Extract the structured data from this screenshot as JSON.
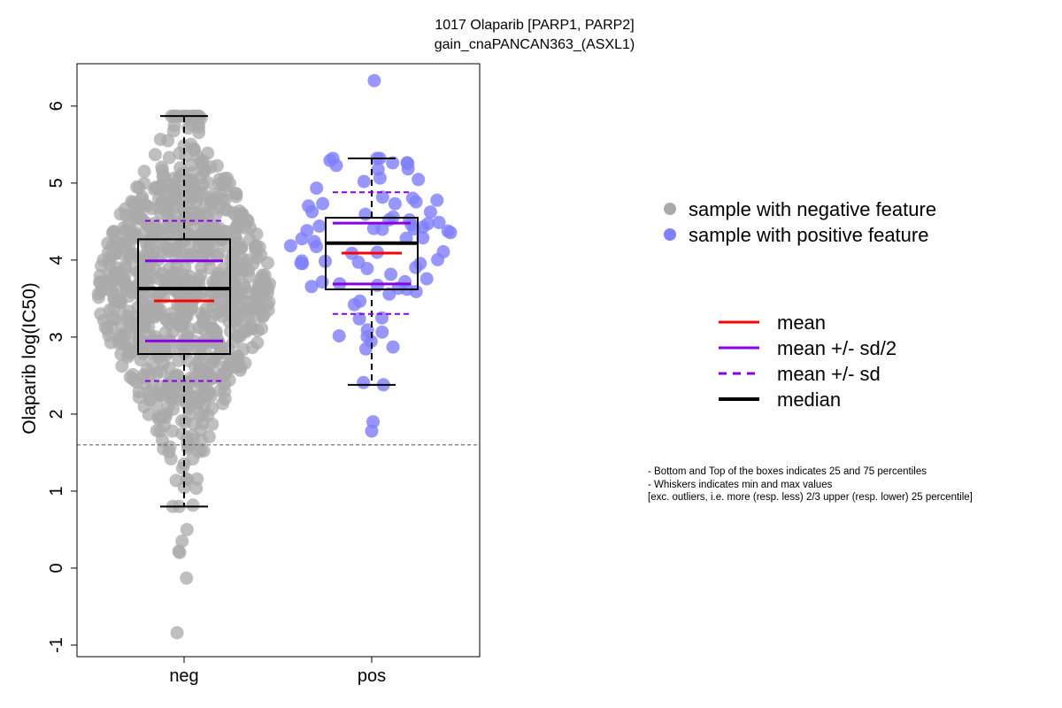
{
  "chart_data": {
    "type": "scatter",
    "title": "1017 Olaparib [PARP1, PARP2]",
    "subtitle": "gain_cnaPANCAN363_(ASXL1)",
    "ylabel": "Olaparib log(IC50)",
    "ylim": [
      -1.15,
      6.55
    ],
    "yticks": [
      "-1",
      "0",
      "1",
      "2",
      "3",
      "4",
      "5",
      "6"
    ],
    "yticks_values": [
      -1,
      0,
      1,
      2,
      3,
      4,
      5,
      6
    ],
    "categories": [
      "neg",
      "pos"
    ],
    "threshold_line": 1.6,
    "colors": {
      "neg": "#aaaaaa",
      "pos": "#8080ff",
      "mean": "#ff0000",
      "sd": "#8a00e6",
      "median": "#000000"
    },
    "groups": [
      {
        "category": "neg",
        "n": 900,
        "stats": {
          "median": 3.63,
          "q1": 2.78,
          "q3": 4.27,
          "whisker_low": 0.8,
          "whisker_high": 5.87,
          "mean": 3.47,
          "mean_plus_half_sd": 3.99,
          "mean_minus_half_sd": 2.95,
          "mean_plus_sd": 4.51,
          "mean_minus_sd": 2.43
        },
        "outliers": [
          0.5,
          0.35,
          0.2,
          0.22,
          -0.13,
          -0.84
        ]
      },
      {
        "category": "pos",
        "n": 80,
        "stats": {
          "median": 4.22,
          "q1": 3.62,
          "q3": 4.55,
          "whisker_low": 2.38,
          "whisker_high": 5.32,
          "mean": 4.09,
          "mean_plus_half_sd": 4.48,
          "mean_minus_half_sd": 3.69,
          "mean_plus_sd": 4.88,
          "mean_minus_sd": 3.3
        },
        "outliers": [
          6.33,
          1.9,
          1.78
        ]
      }
    ],
    "legend_points": [
      {
        "label": "sample with negative feature",
        "color": "#aaaaaa"
      },
      {
        "label": "sample with positive feature",
        "color": "#8080ff"
      }
    ],
    "legend_lines": [
      {
        "label": "mean",
        "color": "#ff0000",
        "style": "solid"
      },
      {
        "label": "mean +/- sd/2",
        "color": "#8a00e6",
        "style": "solid"
      },
      {
        "label": "mean +/- sd",
        "color": "#8a00e6",
        "style": "dashed"
      },
      {
        "label": "median",
        "color": "#000000",
        "style": "solid-thick"
      }
    ],
    "notes": [
      "- Bottom and Top of the boxes indicates 25 and 75 percentiles",
      "- Whiskers indicates min and max values",
      "[exc. outliers, i.e. more (resp. less) 2/3 upper (resp. lower) 25 percentile]"
    ]
  }
}
